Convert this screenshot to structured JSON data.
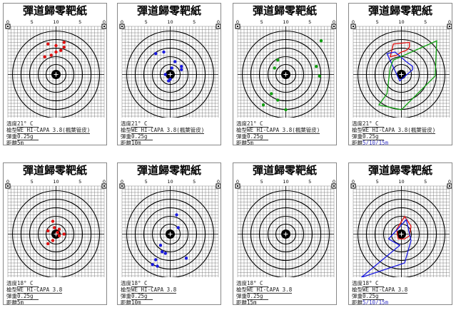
{
  "sheets": [
    {
      "title": "彈道歸零靶紙",
      "ticks": [
        "0",
        "5",
        "10",
        "5",
        "0"
      ],
      "temperature_label": "溫度",
      "temperature": "21° C",
      "model_label": "槍型",
      "model": "WE HI-CAPA 3.8(楓葉管皮)",
      "pellet_label": "彈重",
      "pellet": "0.25g",
      "distance_label": "距離",
      "distance": "5m",
      "shots": [
        {
          "x": 11.5,
          "y": 9.5,
          "c": "#e01010"
        },
        {
          "x": 13.5,
          "y": 9.0,
          "c": "#e01010"
        },
        {
          "x": 15.0,
          "y": 8.0,
          "c": "#e01010"
        },
        {
          "x": 16.5,
          "y": 7.5,
          "c": "#e01010"
        },
        {
          "x": 17.5,
          "y": 6.5,
          "c": "#e01010"
        },
        {
          "x": 15.0,
          "y": 6.0,
          "c": "#e01010"
        },
        {
          "x": 12.5,
          "y": 5.5,
          "c": "#e01010"
        },
        {
          "x": 17.5,
          "y": 5.0,
          "c": "#e01010"
        }
      ],
      "polygons": []
    },
    {
      "title": "彈道歸零靶紙",
      "ticks": [
        "0",
        "5",
        "10",
        "5",
        "0"
      ],
      "temperature_label": "溫度",
      "temperature": "21° C",
      "model_label": "槍型",
      "model": "WE HI-CAPA 3.8(楓葉管皮)",
      "pellet_label": "彈重",
      "pellet": "0.25g",
      "distance_label": "距離",
      "distance": "10m",
      "shots": [
        {
          "x": 13.0,
          "y": 8.0,
          "c": "#1a1ae0"
        },
        {
          "x": 10.5,
          "y": 8.5,
          "c": "#1a1ae0"
        },
        {
          "x": 16.5,
          "y": 11.0,
          "c": "#1a1ae0"
        },
        {
          "x": 18.5,
          "y": 12.5,
          "c": "#1a1ae0"
        },
        {
          "x": 18.5,
          "y": 13.5,
          "c": "#1a1ae0"
        },
        {
          "x": 15.5,
          "y": 13.0,
          "c": "#1a1ae0"
        },
        {
          "x": 13.5,
          "y": 15.0,
          "c": "#1a1ae0"
        },
        {
          "x": 15.0,
          "y": 16.5,
          "c": "#1a1ae0"
        },
        {
          "x": 14.5,
          "y": 17.0,
          "c": "#1a1ae0"
        }
      ],
      "polygons": []
    },
    {
      "title": "彈道歸零靶紙",
      "ticks": [
        "0",
        "5",
        "10",
        "5",
        "0"
      ],
      "temperature_label": "溫度",
      "temperature": "21° C",
      "model_label": "槍型",
      "model": "WE HI-CAPA 3.8(楓葉管皮)",
      "pellet_label": "彈重",
      "pellet": "0.25g",
      "distance_label": "距離",
      "distance": "5m",
      "shots": [
        {
          "x": 26.0,
          "y": 4.5,
          "c": "#10a010"
        },
        {
          "x": 12.5,
          "y": 10.5,
          "c": "#10a010"
        },
        {
          "x": 11.5,
          "y": 13.0,
          "c": "#10a010"
        },
        {
          "x": 24.5,
          "y": 12.5,
          "c": "#10a010"
        },
        {
          "x": 25.5,
          "y": 15.5,
          "c": "#10a010"
        },
        {
          "x": 10.5,
          "y": 21.0,
          "c": "#10a010"
        },
        {
          "x": 12.5,
          "y": 23.0,
          "c": "#10a010"
        },
        {
          "x": 8.0,
          "y": 24.5,
          "c": "#10a010"
        },
        {
          "x": 15.0,
          "y": 26.0,
          "c": "#10a010"
        }
      ],
      "polygons": []
    },
    {
      "title": "彈道歸零靶紙",
      "ticks": [
        "0",
        "5",
        "10",
        "5",
        "0"
      ],
      "temperature_label": "溫度",
      "temperature": "21° C",
      "model_label": "槍型",
      "model": "WE HI-CAPA 3.8(楓葉管皮)",
      "pellet_label": "彈重",
      "pellet": "0.25g",
      "distance_label": "距離",
      "distance": "5/10/15m",
      "shots": [],
      "polygons": [
        {
          "c": "#e01010",
          "pts": [
            [
              11.5,
              9.5
            ],
            [
              13.5,
              9.0
            ],
            [
              15.0,
              8.0
            ],
            [
              16.5,
              7.5
            ],
            [
              17.5,
              6.5
            ],
            [
              17.5,
              5.0
            ],
            [
              12.5,
              5.5
            ]
          ]
        },
        {
          "c": "#1a1ae0",
          "pts": [
            [
              13.0,
              8.0
            ],
            [
              10.5,
              8.5
            ],
            [
              14.5,
              17.0
            ],
            [
              15.0,
              16.5
            ],
            [
              18.5,
              13.5
            ],
            [
              18.5,
              12.5
            ],
            [
              16.5,
              11.0
            ]
          ]
        },
        {
          "c": "#10a010",
          "pts": [
            [
              26.0,
              4.5
            ],
            [
              12.5,
              10.5
            ],
            [
              11.5,
              13.0
            ],
            [
              10.5,
              21.0
            ],
            [
              8.0,
              24.5
            ],
            [
              15.0,
              26.0
            ],
            [
              25.5,
              15.5
            ]
          ]
        }
      ]
    },
    {
      "title": "彈道歸零靶紙",
      "ticks": [
        "0",
        "5",
        "10",
        "5",
        "0"
      ],
      "temperature_label": "溫度",
      "temperature": "18° C",
      "model_label": "槍型",
      "model": "WE HI-CAPA 3.8",
      "pellet_label": "彈重",
      "pellet": "0.25g",
      "distance_label": "距離",
      "distance": "5m",
      "shots": [
        {
          "x": 14.0,
          "y": 11.0,
          "c": "#e01010"
        },
        {
          "x": 14.5,
          "y": 13.0,
          "c": "#e01010"
        },
        {
          "x": 16.0,
          "y": 13.5,
          "c": "#e01010"
        },
        {
          "x": 12.5,
          "y": 14.0,
          "c": "#e01010"
        },
        {
          "x": 15.5,
          "y": 14.5,
          "c": "#e01010"
        },
        {
          "x": 17.5,
          "y": 15.0,
          "c": "#e01010"
        },
        {
          "x": 16.0,
          "y": 15.5,
          "c": "#e01010"
        },
        {
          "x": 14.0,
          "y": 17.0,
          "c": "#e01010"
        },
        {
          "x": 12.5,
          "y": 18.0,
          "c": "#e01010"
        }
      ],
      "polygons": []
    },
    {
      "title": "彈道歸零靶紙",
      "ticks": [
        "0",
        "5",
        "10",
        "5",
        "0"
      ],
      "temperature_label": "溫度",
      "temperature": "18° C",
      "model_label": "槍型",
      "model": "WE HI-CAPA 3.8",
      "pellet_label": "彈重",
      "pellet": "0.25g",
      "distance_label": "距離",
      "distance": "10m",
      "shots": [
        {
          "x": 17.0,
          "y": 9.0,
          "c": "#1a1ae0"
        },
        {
          "x": 17.5,
          "y": 13.0,
          "c": "#1a1ae0"
        },
        {
          "x": 12.0,
          "y": 18.5,
          "c": "#1a1ae0"
        },
        {
          "x": 12.5,
          "y": 20.5,
          "c": "#1a1ae0"
        },
        {
          "x": 13.5,
          "y": 21.0,
          "c": "#1a1ae0"
        },
        {
          "x": 20.0,
          "y": 22.5,
          "c": "#1a1ae0"
        },
        {
          "x": 10.5,
          "y": 23.0,
          "c": "#1a1ae0"
        },
        {
          "x": 9.5,
          "y": 24.5,
          "c": "#1a1ae0"
        },
        {
          "x": 11.0,
          "y": 25.0,
          "c": "#1a1ae0"
        }
      ],
      "polygons": []
    },
    {
      "title": "彈道歸零靶紙",
      "ticks": [
        "0",
        "5",
        "10",
        "5",
        "0"
      ],
      "temperature_label": "溫度",
      "temperature": "18° C",
      "model_label": "槍型",
      "model": "WE HI-CAPA 3.8",
      "pellet_label": "彈重",
      "pellet": "0.25g",
      "distance_label": "距離",
      "distance": "15m",
      "shots": [],
      "polygons": []
    },
    {
      "title": "彈道歸零靶紙",
      "ticks": [
        "0",
        "5",
        "10",
        "5",
        "0"
      ],
      "temperature_label": "溫度",
      "temperature": "18° C",
      "model_label": "槍型",
      "model": "WE HI-CAPA 3.8",
      "pellet_label": "彈重",
      "pellet": "0.25g",
      "distance_label": "距離",
      "distance": "5/10/15m",
      "shots": [],
      "polygons": [
        {
          "c": "#e01010",
          "pts": [
            [
              16.0,
              9.5
            ],
            [
              18.0,
              12.5
            ],
            [
              17.5,
              15.5
            ],
            [
              16.0,
              16.5
            ],
            [
              14.0,
              16.5
            ],
            [
              13.5,
              13.5
            ]
          ]
        },
        {
          "c": "#1a1ae0",
          "pts": [
            [
              16.5,
              10.5
            ],
            [
              11.0,
              16.5
            ],
            [
              14.5,
              18.5
            ],
            [
              2.5,
              28.5
            ],
            [
              16.0,
              24.0
            ],
            [
              18.0,
              17.0
            ]
          ]
        }
      ]
    }
  ]
}
